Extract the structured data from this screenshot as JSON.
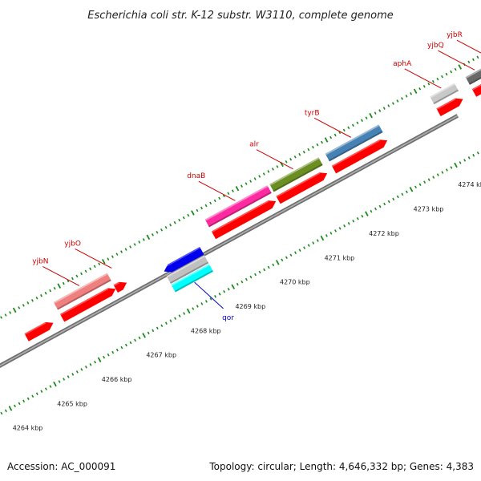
{
  "title": "Escherichia coli str. K-12 substr. W3110, complete genome",
  "footer": {
    "accession": "Accession: AC_000091",
    "summary": "Topology: circular; Length: 4,646,332 bp; Genes: 4,383"
  },
  "colors": {
    "backbone": "#8a8a8a",
    "tick": "#1a8a1a",
    "label_forward": "#cc0000",
    "label_reverse": "#0000cc",
    "cds": "#ff0000"
  },
  "scale": {
    "unit": "kbp",
    "ticks": [
      {
        "value": 4264,
        "label": "4264 kbp"
      },
      {
        "value": 4265,
        "label": "4265 kbp"
      },
      {
        "value": 4266,
        "label": "4266 kbp"
      },
      {
        "value": 4267,
        "label": "4267 kbp"
      },
      {
        "value": 4268,
        "label": "4268 kbp"
      },
      {
        "value": 4269,
        "label": "4269 kbp"
      },
      {
        "value": 4270,
        "label": "4270 kbp"
      },
      {
        "value": 4271,
        "label": "4271 kbp"
      },
      {
        "value": 4272,
        "label": "4272 kbp"
      },
      {
        "value": 4273,
        "label": "4273 kbp"
      },
      {
        "value": 4274,
        "label": "4274 kbp"
      }
    ]
  },
  "genes": [
    {
      "name": "yjbN",
      "strand": "forward",
      "start": 4265.75,
      "end": 4266.95,
      "color": "#f08080"
    },
    {
      "name": "yjbO",
      "strand": "forward",
      "start": 4266.95,
      "end": 4267.2,
      "color": "#ff0000"
    },
    {
      "name": "dnaB",
      "strand": "forward",
      "start": 4269.15,
      "end": 4270.55,
      "color": "#ff2aa0"
    },
    {
      "name": "alr",
      "strand": "forward",
      "start": 4270.6,
      "end": 4271.7,
      "color": "#6b8e23"
    },
    {
      "name": "tyrB",
      "strand": "forward",
      "start": 4271.85,
      "end": 4273.05,
      "color": "#4682b4"
    },
    {
      "name": "aphA",
      "strand": "forward",
      "start": 4274.2,
      "end": 4274.75,
      "color": "#c8c8c8"
    },
    {
      "name": "yjbQ",
      "strand": "forward",
      "start": 4275.0,
      "end": 4275.45,
      "color": "#696969"
    },
    {
      "name": "yjbR",
      "strand": "forward",
      "start": 4275.45,
      "end": 4275.85,
      "color": "#696969"
    },
    {
      "name": "qor",
      "strand": "reverse",
      "start": 4267.95,
      "end": 4268.8,
      "color": "#00ffff"
    }
  ]
}
